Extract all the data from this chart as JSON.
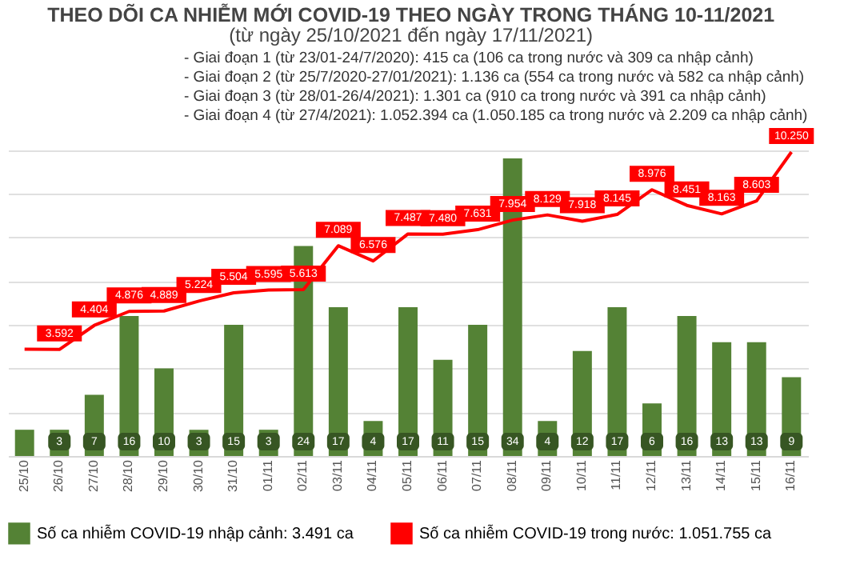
{
  "chart_data": {
    "type": "bar",
    "title": "THEO DÕI CA NHIỄM MỚI COVID-19 THEO NGÀY TRONG THÁNG 10-11/2021",
    "subtitle": "(từ ngày 25/10/2021 đến ngày 17/11/2021)",
    "annotations": [
      "- Giai đoạn 1 (từ 23/01-24/7/2020): 415 ca (106 ca trong nước và 309 ca nhập cảnh)",
      "- Giai đoạn 2 (từ 25/7/2020-27/01/2021): 1.136 ca (554 ca trong nước và 582 ca nhập cảnh)",
      "- Giai đoạn 3 (từ 28/01-26/4/2021): 1.301 ca (910 ca trong nước và 391 ca nhập cảnh)",
      "- Giai đoạn 4 (từ 27/4/2021): 1.052.394 ca (1.050.185 ca trong nước và 2.209 ca nhập cảnh)"
    ],
    "categories": [
      "25/10",
      "26/10",
      "27/10",
      "28/10",
      "29/10",
      "30/10",
      "31/10",
      "01/11",
      "02/11",
      "03/11",
      "04/11",
      "05/11",
      "06/11",
      "07/11",
      "08/11",
      "09/11",
      "10/11",
      "11/11",
      "12/11",
      "13/11",
      "14/11",
      "15/11",
      "16/11"
    ],
    "series": [
      {
        "name": "Số ca nhiễm COVID-19 nhập cảnh: 3.491 ca",
        "color": "#548235",
        "values": [
          3,
          3,
          7,
          16,
          10,
          3,
          15,
          3,
          24,
          17,
          4,
          17,
          11,
          15,
          34,
          4,
          12,
          17,
          6,
          16,
          13,
          13,
          9
        ],
        "value_labels": [
          null,
          "3",
          "7",
          "16",
          "10",
          "3",
          "15",
          "3",
          "24",
          "17",
          "4",
          "17",
          "11",
          "15",
          "34",
          "4",
          "12",
          "17",
          "6",
          "16",
          "13",
          "13",
          "9"
        ]
      },
      {
        "name": "Số ca nhiễm COVID-19 trong nước: 1.051.755 ca",
        "type": "line",
        "axis": "y2",
        "color": "#ff0000",
        "values": [
          3600,
          3592,
          4404,
          4876,
          4889,
          5224,
          5504,
          5595,
          5613,
          7089,
          6576,
          7487,
          7480,
          7631,
          7954,
          8129,
          7918,
          8145,
          8976,
          8451,
          8163,
          8603,
          10250
        ],
        "value_labels": [
          null,
          "3.592",
          "4.404",
          "4.876",
          "4.889",
          "5.224",
          "5.504",
          "5.595",
          "5.613",
          "7.089",
          "6.576",
          "7.487",
          "7.480",
          "7.631",
          "7.954",
          "8.129",
          "7.918",
          "8.145",
          "8.976",
          "8.451",
          "8.163",
          "8.603",
          "10.250"
        ]
      }
    ],
    "grid": "y",
    "tick_labels": "x",
    "legend": "bottom",
    "marker": "none",
    "line_style": "solid"
  }
}
